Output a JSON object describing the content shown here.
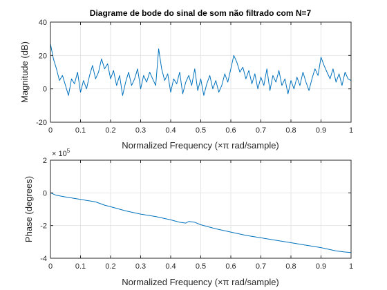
{
  "chart_data": [
    {
      "type": "line",
      "title": "Diagrame de bode do sinal de som não filtrado com N=7",
      "xlabel": "Normalized Frequency  (×π rad/sample)",
      "ylabel": "Magnitude (dB)",
      "xlim": [
        0,
        1
      ],
      "ylim": [
        -20,
        40
      ],
      "xticks": [
        0,
        0.1,
        0.2,
        0.3,
        0.4,
        0.5,
        0.6,
        0.7,
        0.8,
        0.9,
        1
      ],
      "xtick_labels": [
        "0",
        "0.1",
        "0.2",
        "0.3",
        "0.4",
        "0.5",
        "0.6",
        "0.7",
        "0.8",
        "0.9",
        "1"
      ],
      "yticks": [
        -20,
        0,
        20,
        40
      ],
      "ytick_labels": [
        "-20",
        "0",
        "20",
        "40"
      ],
      "grid": true,
      "color": "#0072BD",
      "series": [
        {
          "x": [
            0,
            0.01,
            0.02,
            0.03,
            0.04,
            0.05,
            0.06,
            0.07,
            0.08,
            0.09,
            0.1,
            0.11,
            0.12,
            0.13,
            0.14,
            0.15,
            0.16,
            0.17,
            0.18,
            0.19,
            0.2,
            0.21,
            0.22,
            0.23,
            0.24,
            0.25,
            0.26,
            0.27,
            0.28,
            0.29,
            0.3,
            0.31,
            0.32,
            0.33,
            0.34,
            0.35,
            0.36,
            0.37,
            0.38,
            0.39,
            0.4,
            0.41,
            0.42,
            0.43,
            0.44,
            0.45,
            0.46,
            0.47,
            0.48,
            0.49,
            0.5,
            0.51,
            0.52,
            0.53,
            0.54,
            0.55,
            0.56,
            0.57,
            0.58,
            0.59,
            0.6,
            0.61,
            0.62,
            0.63,
            0.64,
            0.65,
            0.66,
            0.67,
            0.68,
            0.69,
            0.7,
            0.71,
            0.72,
            0.73,
            0.74,
            0.75,
            0.76,
            0.77,
            0.78,
            0.79,
            0.8,
            0.81,
            0.82,
            0.83,
            0.84,
            0.85,
            0.86,
            0.87,
            0.88,
            0.89,
            0.9,
            0.91,
            0.92,
            0.93,
            0.94,
            0.95,
            0.96,
            0.97,
            0.98,
            0.99,
            1.0
          ],
          "y": [
            27,
            18,
            12,
            5,
            8,
            2,
            -4,
            6,
            3,
            10,
            -2,
            5,
            0,
            8,
            14,
            6,
            10,
            18,
            12,
            15,
            6,
            11,
            2,
            8,
            -4,
            4,
            10,
            2,
            6,
            12,
            0,
            8,
            4,
            10,
            6,
            2,
            24,
            12,
            5,
            9,
            -2,
            6,
            3,
            10,
            -3,
            4,
            8,
            2,
            12,
            -1,
            6,
            -4,
            3,
            8,
            0,
            5,
            -2,
            2,
            9,
            4,
            12,
            20,
            16,
            10,
            13,
            6,
            11,
            3,
            9,
            0,
            7,
            2,
            12,
            -1,
            8,
            4,
            11,
            2,
            6,
            -3,
            5,
            0,
            7,
            2,
            10,
            4,
            -1,
            6,
            12,
            8,
            19,
            14,
            10,
            6,
            12,
            4,
            9,
            2,
            10,
            6,
            5
          ]
        }
      ]
    },
    {
      "type": "line",
      "title": "",
      "xlabel": "Normalized Frequency  (×π rad/sample)",
      "ylabel": "Phase (degrees)",
      "exponent_label": "× 10^5",
      "exponent_base": "× 10",
      "exponent_power": "5",
      "xlim": [
        0,
        1
      ],
      "ylim": [
        -4,
        2
      ],
      "xticks": [
        0,
        0.1,
        0.2,
        0.3,
        0.4,
        0.5,
        0.6,
        0.7,
        0.8,
        0.9,
        1
      ],
      "xtick_labels": [
        "0",
        "0.1",
        "0.2",
        "0.3",
        "0.4",
        "0.5",
        "0.6",
        "0.7",
        "0.8",
        "0.9",
        "1"
      ],
      "yticks": [
        -4,
        -2,
        0,
        2
      ],
      "ytick_labels": [
        "-4",
        "-2",
        "0",
        "2"
      ],
      "grid": true,
      "color": "#0072BD",
      "series": [
        {
          "x": [
            0,
            0.02,
            0.05,
            0.1,
            0.15,
            0.18,
            0.2,
            0.25,
            0.3,
            0.35,
            0.4,
            0.43,
            0.45,
            0.46,
            0.48,
            0.5,
            0.55,
            0.6,
            0.65,
            0.7,
            0.75,
            0.8,
            0.85,
            0.9,
            0.95,
            0.98,
            1.0
          ],
          "y": [
            0,
            -0.15,
            -0.25,
            -0.4,
            -0.55,
            -0.75,
            -0.85,
            -1.1,
            -1.3,
            -1.45,
            -1.65,
            -1.8,
            -1.85,
            -1.75,
            -1.8,
            -1.95,
            -2.2,
            -2.4,
            -2.6,
            -2.75,
            -2.9,
            -3.05,
            -3.2,
            -3.35,
            -3.55,
            -3.62,
            -3.65
          ]
        }
      ]
    }
  ]
}
